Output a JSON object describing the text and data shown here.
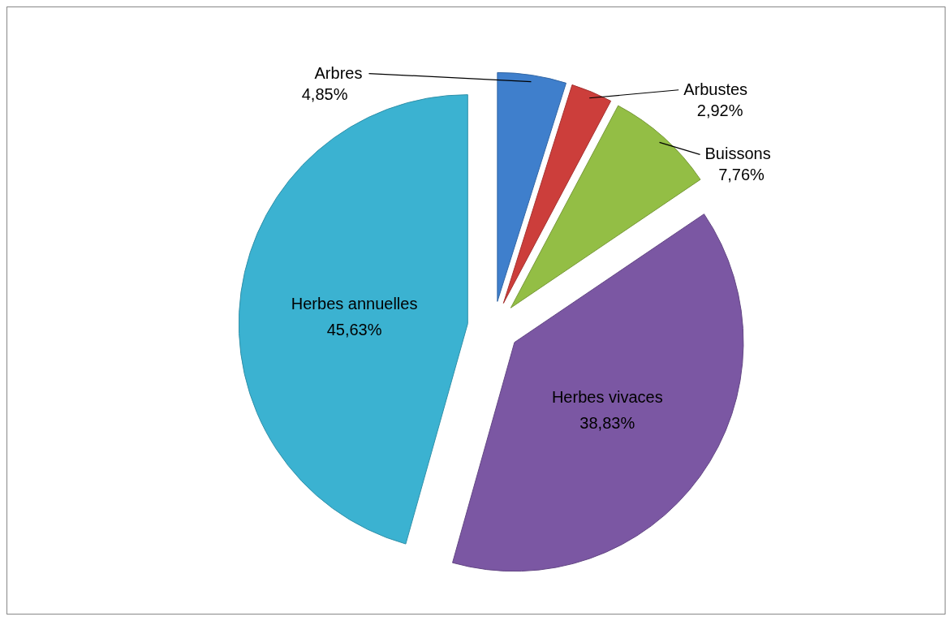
{
  "chart_data": {
    "type": "pie",
    "categories": [
      "Arbres",
      "Arbustes",
      "Buissons",
      "Herbes vivaces",
      "Herbes annuelles"
    ],
    "values": [
      4.85,
      2.92,
      7.76,
      38.83,
      45.63
    ],
    "value_labels": [
      "4,85%",
      "2,92%",
      "7,76%",
      "38,83%",
      "45,63%"
    ],
    "colors": [
      "#3f7fcc",
      "#cc3e3b",
      "#93be45",
      "#7b57a3",
      "#3bb2d1"
    ]
  }
}
